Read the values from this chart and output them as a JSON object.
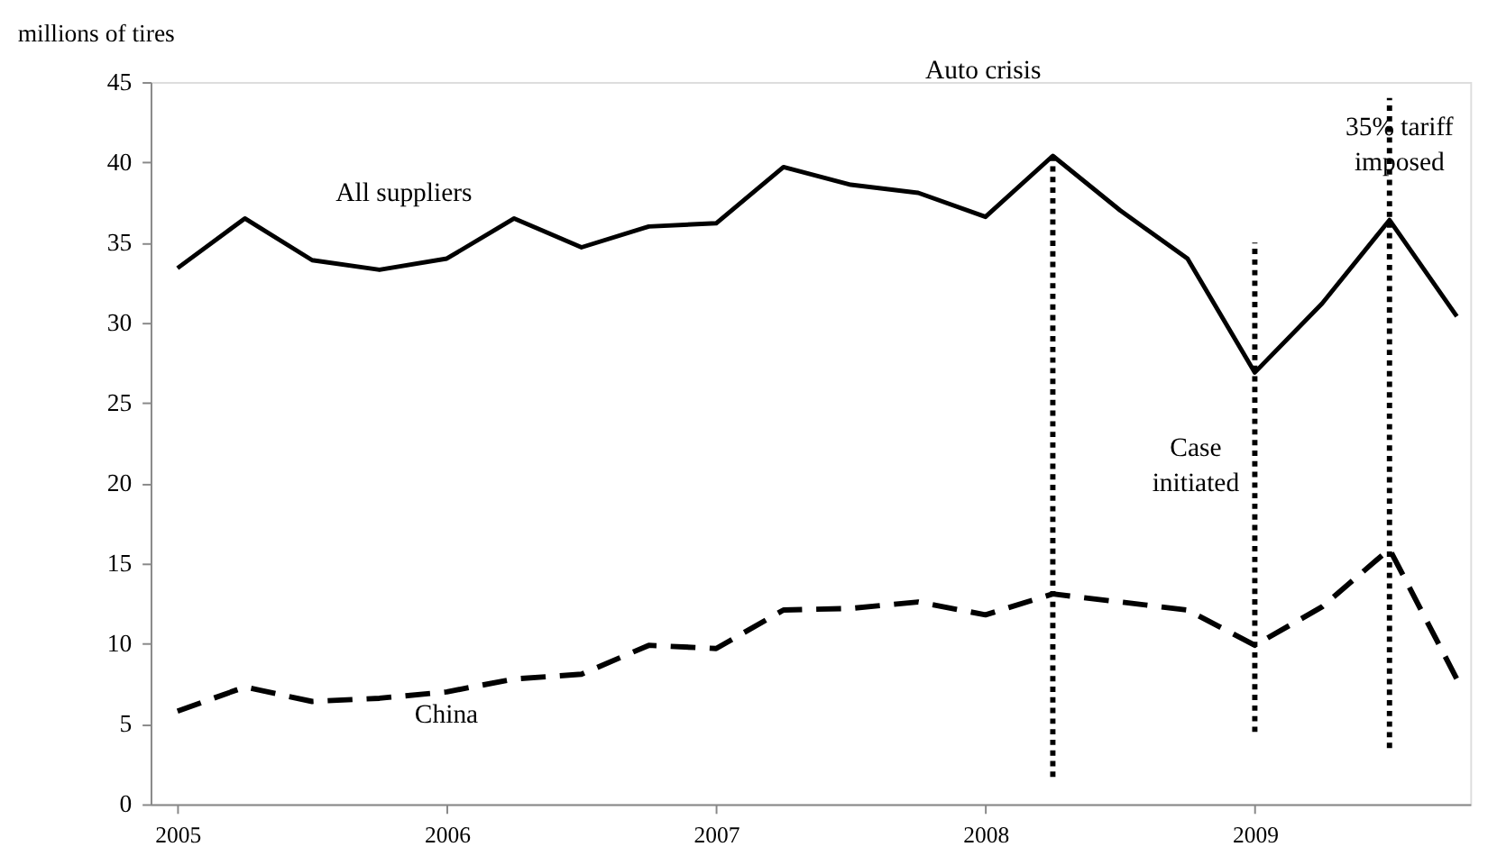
{
  "chart_data": {
    "type": "line",
    "ylabel": "millions of tires",
    "x": [
      2005,
      2005.25,
      2005.5,
      2005.75,
      2006,
      2006.25,
      2006.5,
      2006.75,
      2007,
      2007.25,
      2007.5,
      2007.75,
      2008,
      2008.25,
      2008.5,
      2008.75,
      2009,
      2009.25,
      2009.5,
      2009.75
    ],
    "series": [
      {
        "name": "All suppliers",
        "color": "#000000",
        "line_style": "solid",
        "values": [
          33.4,
          36.5,
          33.9,
          33.3,
          34.0,
          36.5,
          34.7,
          36.0,
          36.2,
          39.7,
          38.6,
          38.1,
          36.6,
          40.4,
          37.0,
          34.0,
          26.9,
          31.2,
          36.4,
          30.4
        ]
      },
      {
        "name": "China",
        "color": "#000000",
        "line_style": "dashed",
        "values": [
          5.8,
          7.3,
          6.4,
          6.6,
          7.0,
          7.8,
          8.1,
          9.9,
          9.7,
          12.1,
          12.2,
          12.6,
          11.8,
          13.1,
          12.6,
          12.1,
          9.9,
          12.3,
          15.9,
          7.8
        ]
      },
      {
        "color": "#000000",
        "line_style": "dotted",
        "x": [
          2008.25,
          2008.25
        ],
        "values": [
          1.7,
          40.5
        ]
      },
      {
        "color": "#000000",
        "line_style": "dotted",
        "x": [
          2009,
          2009
        ],
        "values": [
          4.5,
          35
        ]
      },
      {
        "color": "#000000",
        "line_style": "dotted",
        "x": [
          2009.5,
          2009.5
        ],
        "values": [
          3.5,
          44
        ]
      }
    ],
    "annotations": [
      "Auto crisis",
      "Case\ninitiated",
      "35% tariff\nimposed"
    ],
    "xlim": [
      2004.9,
      2009.8
    ],
    "xticks": [
      2005,
      2006,
      2007,
      2008,
      2009
    ],
    "ylim": [
      0,
      45
    ],
    "yticks": [
      0,
      5,
      10,
      15,
      20,
      25,
      30,
      35,
      40,
      45
    ],
    "grid": false,
    "legend": false,
    "marker": "none"
  }
}
